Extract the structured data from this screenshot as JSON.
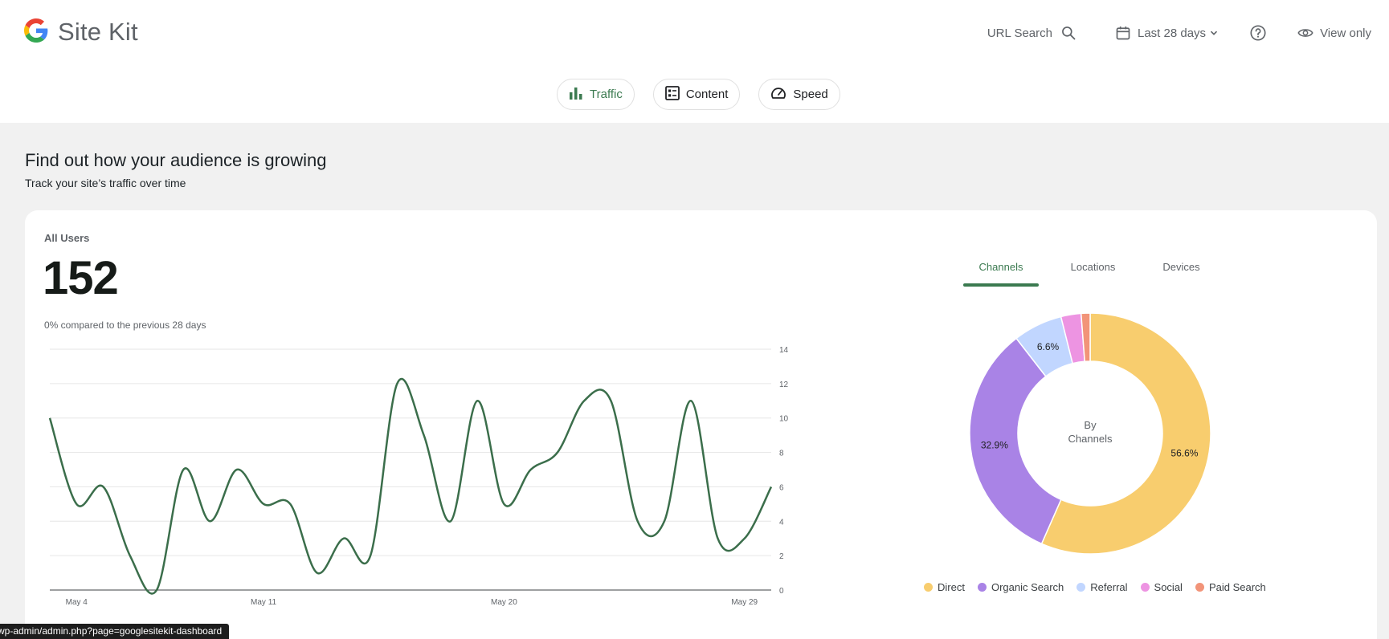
{
  "app": {
    "title": "Site Kit"
  },
  "header": {
    "url_search_label": "URL Search",
    "date_range_label": "Last 28 days",
    "view_only_label": "View only"
  },
  "nav": {
    "chips": [
      {
        "label": "Traffic",
        "icon": "bar-chart-icon",
        "active": true
      },
      {
        "label": "Content",
        "icon": "content-icon",
        "active": false
      },
      {
        "label": "Speed",
        "icon": "speedometer-icon",
        "active": false
      }
    ]
  },
  "section": {
    "title": "Find out how your audience is growing",
    "subtitle": "Track your site’s traffic over time"
  },
  "metric": {
    "label": "All Users",
    "value": "152",
    "change": "0% compared to the previous 28 days"
  },
  "tabs": [
    {
      "label": "Channels",
      "active": true
    },
    {
      "label": "Locations",
      "active": false
    },
    {
      "label": "Devices",
      "active": false
    }
  ],
  "status_bar": {
    "url": "wp-admin/admin.php?page=googlesitekit-dashboard"
  },
  "colors": {
    "accent": "#3b7a50",
    "line": "#3b6e4b"
  },
  "chart_data": [
    {
      "type": "line",
      "title": "",
      "xlabel": "",
      "ylabel": "",
      "x_tick_labels": [
        "May 4",
        "May 11",
        "May 20",
        "May 29"
      ],
      "x_tick_indices": [
        1,
        8,
        17,
        26
      ],
      "y_ticks": [
        0,
        2,
        4,
        6,
        8,
        10,
        12,
        14
      ],
      "ylim": [
        0,
        14
      ],
      "y_axis_side": "right",
      "grid": true,
      "series": [
        {
          "values": [
            10,
            5,
            6,
            2,
            0,
            7,
            4,
            7,
            5,
            5,
            1,
            3,
            2,
            12,
            9,
            4,
            11,
            5,
            7,
            8,
            11,
            11,
            4,
            4,
            11,
            3,
            3,
            6
          ]
        }
      ]
    },
    {
      "type": "pie",
      "center_label": "By\nChannels",
      "slices": [
        {
          "label": "Direct",
          "value": 56.6,
          "display": "56.6%",
          "color": "#f8cd6e"
        },
        {
          "label": "Organic Search",
          "value": 32.9,
          "display": "32.9%",
          "color": "#a983e6"
        },
        {
          "label": "Referral",
          "value": 6.6,
          "display": "6.6%",
          "color": "#c1d6ff"
        },
        {
          "label": "Social",
          "value": 2.7,
          "display": "",
          "color": "#ed94e2"
        },
        {
          "label": "Paid Search",
          "value": 1.2,
          "display": "",
          "color": "#f29479"
        }
      ]
    }
  ]
}
